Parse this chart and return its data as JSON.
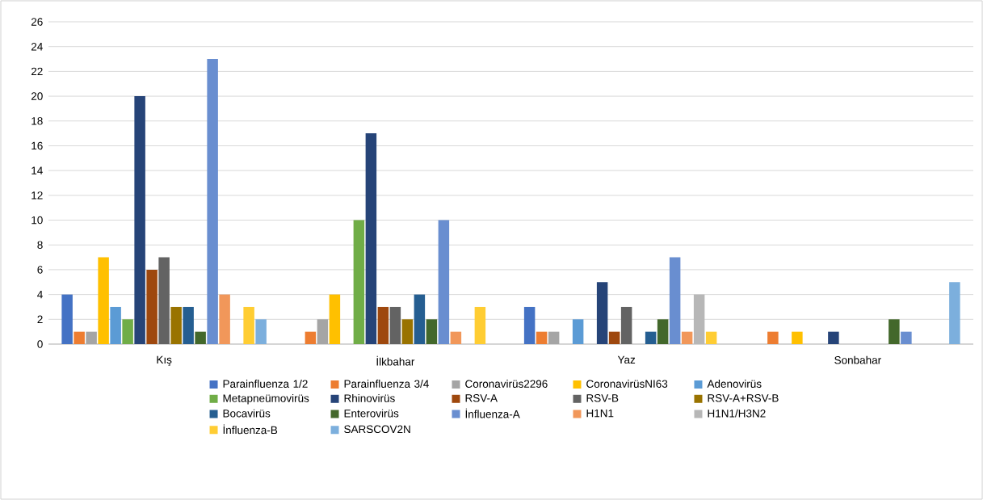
{
  "chart_data": {
    "type": "bar",
    "categories": [
      "Kış",
      "İlkbahar",
      "Yaz",
      "Sonbahar"
    ],
    "series": [
      {
        "name": "Parainfluenza 1/2",
        "color": "#4472c4",
        "values": [
          4,
          0,
          3,
          0
        ]
      },
      {
        "name": "Parainfluenza 3/4",
        "color": "#ed7d31",
        "values": [
          1,
          1,
          1,
          1
        ]
      },
      {
        "name": "Coronavirüs2296",
        "color": "#a5a5a5",
        "values": [
          1,
          2,
          1,
          0
        ]
      },
      {
        "name": "CoronavirüsNI63",
        "color": "#ffc000",
        "values": [
          7,
          4,
          0,
          1
        ]
      },
      {
        "name": "Adenovirüs",
        "color": "#5b9bd5",
        "values": [
          3,
          0,
          2,
          0
        ]
      },
      {
        "name": "Metapneümovirüs",
        "color": "#70ad47",
        "values": [
          2,
          10,
          0,
          0
        ]
      },
      {
        "name": "Rhinovirüs",
        "color": "#264478",
        "values": [
          20,
          17,
          5,
          1
        ]
      },
      {
        "name": "RSV-A",
        "color": "#9e480e",
        "values": [
          6,
          3,
          1,
          0
        ]
      },
      {
        "name": "RSV-B",
        "color": "#636363",
        "values": [
          7,
          3,
          3,
          0
        ]
      },
      {
        "name": "RSV-A+RSV-B",
        "color": "#997300",
        "values": [
          3,
          2,
          0,
          0
        ]
      },
      {
        "name": "Bocavirüs",
        "color": "#255e91",
        "values": [
          3,
          4,
          1,
          0
        ]
      },
      {
        "name": "Enterovirüs",
        "color": "#43682b",
        "values": [
          1,
          2,
          2,
          2
        ]
      },
      {
        "name": "İnfluenza-A",
        "color": "#698ed0",
        "values": [
          23,
          10,
          7,
          1
        ]
      },
      {
        "name": "H1N1",
        "color": "#f1975a",
        "values": [
          4,
          1,
          1,
          0
        ]
      },
      {
        "name": "H1N1/H3N2",
        "color": "#b7b7b7",
        "values": [
          0,
          0,
          4,
          0
        ]
      },
      {
        "name": "İnfluenza-B",
        "color": "#ffcd33",
        "values": [
          3,
          3,
          1,
          0
        ]
      },
      {
        "name": "SARSCOV2N",
        "color": "#7cafdd",
        "values": [
          2,
          0,
          0,
          5
        ]
      }
    ],
    "ylim": [
      0,
      26
    ],
    "yticks": [
      0,
      2,
      4,
      6,
      8,
      10,
      12,
      14,
      16,
      18,
      20,
      22,
      24,
      26
    ],
    "grid": "y",
    "legend": "bottom"
  }
}
